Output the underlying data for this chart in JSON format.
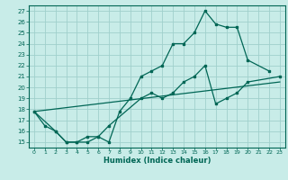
{
  "xlabel": "Humidex (Indice chaleur)",
  "bg_color": "#c8ece8",
  "grid_color": "#a0d0cc",
  "line_color": "#006655",
  "xlim": [
    -0.5,
    23.5
  ],
  "ylim": [
    14.5,
    27.5
  ],
  "xticks": [
    0,
    1,
    2,
    3,
    4,
    5,
    6,
    7,
    8,
    9,
    10,
    11,
    12,
    13,
    14,
    15,
    16,
    17,
    18,
    19,
    20,
    21,
    22,
    23
  ],
  "yticks": [
    15,
    16,
    17,
    18,
    19,
    20,
    21,
    22,
    23,
    24,
    25,
    26,
    27
  ],
  "series1_x": [
    0,
    1,
    2,
    3,
    4,
    5,
    6,
    7,
    8,
    9,
    10,
    11,
    12,
    13,
    14,
    15,
    16,
    17,
    18,
    19,
    20,
    22
  ],
  "series1_y": [
    17.8,
    16.5,
    16.0,
    15.0,
    15.0,
    15.0,
    15.5,
    15.0,
    17.8,
    19.0,
    21.0,
    21.5,
    22.0,
    24.0,
    24.0,
    25.0,
    27.0,
    25.8,
    25.5,
    25.5,
    22.5,
    21.5
  ],
  "series2_x": [
    0,
    2,
    3,
    4,
    5,
    6,
    7,
    10,
    11,
    12,
    13,
    14,
    15,
    16,
    17,
    18,
    19,
    20,
    23
  ],
  "series2_y": [
    17.8,
    16.0,
    15.0,
    15.0,
    15.5,
    15.5,
    16.5,
    19.0,
    19.5,
    19.0,
    19.5,
    20.5,
    21.0,
    22.0,
    18.5,
    19.0,
    19.5,
    20.5,
    21.0
  ],
  "series3_x": [
    0,
    23
  ],
  "series3_y": [
    17.8,
    20.5
  ]
}
